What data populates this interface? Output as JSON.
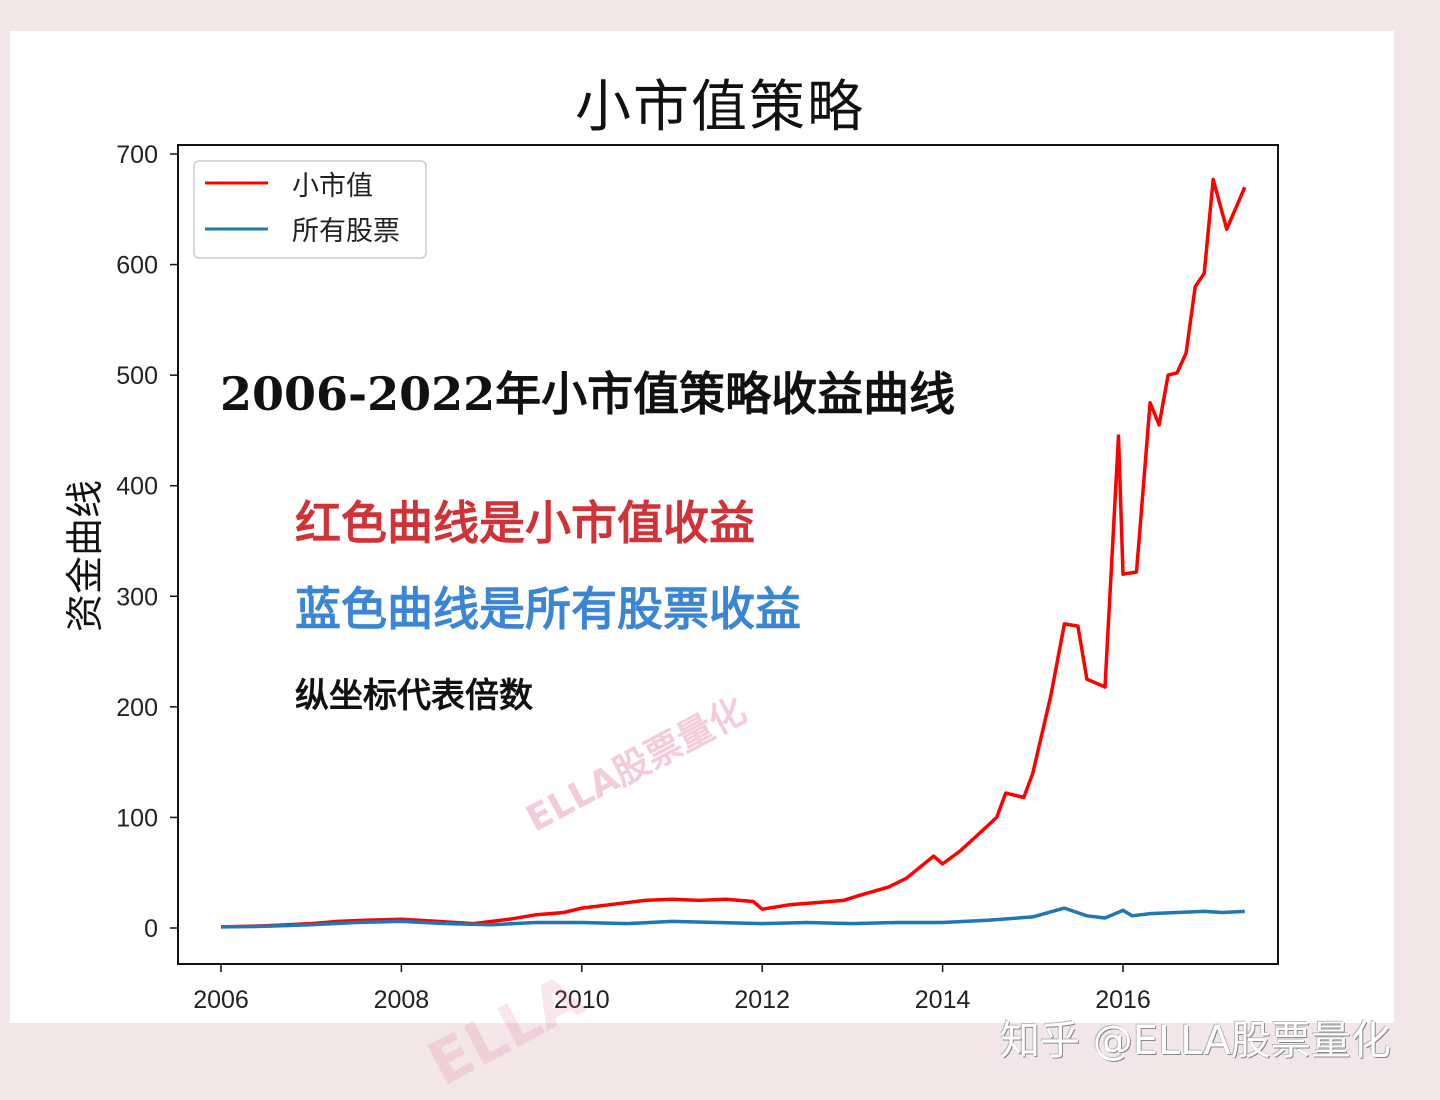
{
  "page": {
    "background_color": "#f3e6e9",
    "annotations": {
      "headline": "2006-2022年小市值策略收益曲线",
      "red_note": "红色曲线是小市值收益",
      "blue_note": "蓝色曲线是所有股票收益",
      "axis_note": "纵坐标代表倍数"
    },
    "watermarks": {
      "center": "ELLA股票量化",
      "bottom": "ELLA",
      "credit": "知乎 @ELLA股票量化"
    }
  },
  "chart_data": {
    "type": "line",
    "title": "小市值策略",
    "xlabel": "",
    "ylabel": "资金曲线",
    "xlim": [
      2005.6,
      2017.8
    ],
    "ylim": [
      -32,
      708
    ],
    "xticks": [
      "2006",
      "2008",
      "2010",
      "2012",
      "2014",
      "2016"
    ],
    "yticks": [
      "0",
      "100",
      "200",
      "300",
      "400",
      "500",
      "600",
      "700"
    ],
    "grid": false,
    "legend_position": "upper left",
    "series": [
      {
        "name": "小市值",
        "color": "#ff0000",
        "x": [
          2006.0,
          2006.5,
          2007.0,
          2007.3,
          2007.6,
          2008.0,
          2008.4,
          2008.8,
          2009.2,
          2009.5,
          2009.8,
          2010.0,
          2010.4,
          2010.7,
          2011.0,
          2011.3,
          2011.6,
          2011.9,
          2012.0,
          2012.3,
          2012.6,
          2012.9,
          2013.1,
          2013.4,
          2013.6,
          2013.9,
          2014.0,
          2014.2,
          2014.4,
          2014.6,
          2014.7,
          2014.9,
          2015.0,
          2015.2,
          2015.35,
          2015.5,
          2015.6,
          2015.8,
          2015.95,
          2016.0,
          2016.15,
          2016.3,
          2016.4,
          2016.5,
          2016.6,
          2016.7,
          2016.8,
          2016.9,
          2017.0,
          2017.15,
          2017.35
        ],
        "values": [
          1,
          2,
          4,
          6,
          7,
          8,
          6,
          4,
          8,
          12,
          14,
          18,
          22,
          25,
          26,
          25,
          26,
          24,
          17,
          21,
          23,
          25,
          30,
          37,
          45,
          65,
          58,
          70,
          85,
          100,
          122,
          118,
          140,
          210,
          275,
          273,
          225,
          218,
          445,
          320,
          322,
          475,
          455,
          500,
          502,
          520,
          580,
          592,
          677,
          632,
          670
        ]
      },
      {
        "name": "所有股票",
        "color": "#1f77b4",
        "x": [
          2006.0,
          2006.5,
          2007.0,
          2007.5,
          2008.0,
          2008.5,
          2009.0,
          2009.5,
          2010.0,
          2010.5,
          2011.0,
          2011.5,
          2012.0,
          2012.5,
          2013.0,
          2013.5,
          2014.0,
          2014.5,
          2015.0,
          2015.35,
          2015.6,
          2015.8,
          2016.0,
          2016.1,
          2016.3,
          2016.6,
          2016.9,
          2017.1,
          2017.35
        ],
        "values": [
          1,
          1.5,
          3,
          5,
          6,
          4,
          3,
          5,
          5,
          4,
          6,
          5,
          4,
          5,
          4,
          5,
          5,
          7,
          10,
          18,
          11,
          9,
          16,
          11,
          13,
          14,
          15,
          14,
          15
        ]
      }
    ]
  }
}
